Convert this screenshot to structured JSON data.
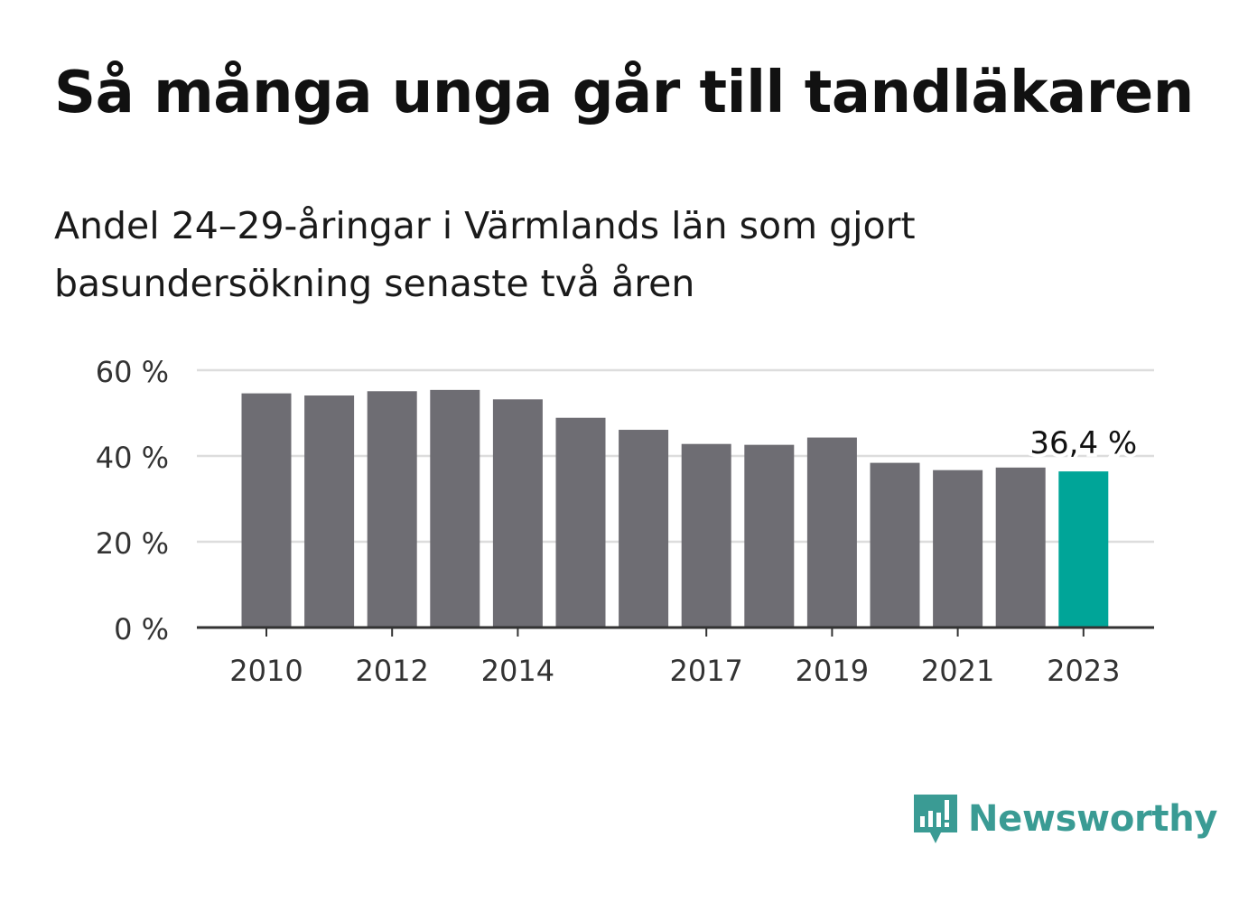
{
  "title": "Så många unga går till tandläkaren",
  "subtitle": "Andel 24–29-åringar i Värmlands län som gjort basundersökning senaste två åren",
  "chart_data": {
    "type": "bar",
    "categories": [
      "2010",
      "2011",
      "2012",
      "2013",
      "2014",
      "2015",
      "2016",
      "2017",
      "2018",
      "2019",
      "2020",
      "2021",
      "2022",
      "2023"
    ],
    "values": [
      54.6,
      54.1,
      55.1,
      55.4,
      53.2,
      48.9,
      46.1,
      42.8,
      42.6,
      44.3,
      38.4,
      36.7,
      37.3,
      36.4
    ],
    "x_tick_labels": [
      "2010",
      "2012",
      "2014",
      "2017",
      "2019",
      "2021",
      "2023"
    ],
    "y_ticks": [
      0,
      20,
      40,
      60
    ],
    "y_tick_labels": [
      "0 %",
      "20 %",
      "40 %",
      "60 %"
    ],
    "ylim": [
      0,
      60
    ],
    "grid": true,
    "highlight_index": 13,
    "highlight_label": "36,4 %",
    "colors": {
      "bar": "#6e6d73",
      "highlight": "#00a598",
      "grid": "#dddddd",
      "axis": "#333333"
    },
    "xlabel": "",
    "ylabel": ""
  },
  "brand": {
    "name": "Newsworthy",
    "icon": "bar-chart-speech-bubble-icon",
    "color": "#3a9b94"
  }
}
